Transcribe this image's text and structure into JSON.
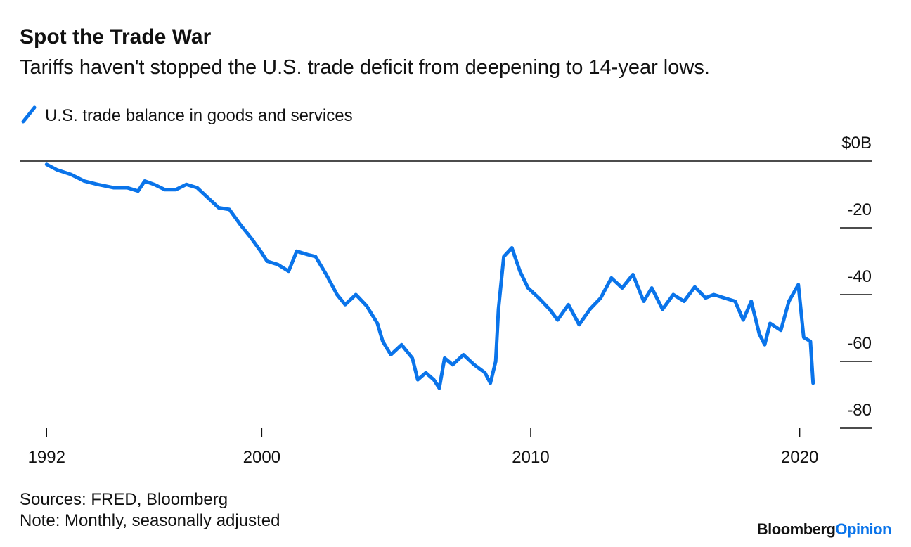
{
  "chart_data": {
    "type": "line",
    "title": "Spot the Trade War",
    "subtitle": "Tariffs haven't stopped the U.S. trade deficit from deepening to 14-year lows.",
    "source": "Sources: FRED, Bloomberg",
    "note": "Note: Monthly, seasonally adjusted",
    "logo": [
      "Bloomberg",
      "Opinion"
    ],
    "x": [
      1992.0,
      1992.4,
      1992.9,
      1993.4,
      1993.9,
      1994.5,
      1995.0,
      1995.4,
      1995.65,
      1996.0,
      1996.4,
      1996.8,
      1997.2,
      1997.6,
      1998.0,
      1998.4,
      1998.8,
      1999.2,
      1999.6,
      2000.0,
      2000.2,
      2000.6,
      2001.0,
      2001.3,
      2001.7,
      2002.0,
      2002.4,
      2002.8,
      2003.1,
      2003.5,
      2003.9,
      2004.3,
      2004.5,
      2004.8,
      2005.2,
      2005.6,
      2005.8,
      2006.1,
      2006.4,
      2006.6,
      2006.8,
      2007.1,
      2007.5,
      2007.9,
      2008.3,
      2008.5,
      2008.7,
      2008.8,
      2009.0,
      2009.3,
      2009.6,
      2009.9,
      2010.3,
      2010.7,
      2011.0,
      2011.4,
      2011.8,
      2012.2,
      2012.6,
      2013.0,
      2013.4,
      2013.8,
      2014.2,
      2014.5,
      2014.9,
      2015.3,
      2015.7,
      2016.1,
      2016.5,
      2016.8,
      2017.2,
      2017.6,
      2017.9,
      2018.2,
      2018.5,
      2018.7,
      2018.9,
      2019.3,
      2019.6,
      2019.95,
      2020.15,
      2020.4,
      2020.5
    ],
    "series": [
      {
        "name": "U.S. trade balance in goods and services",
        "color": "#0a74ea",
        "values": [
          -1,
          -2.7,
          -4,
          -6,
          -7,
          -8,
          -8,
          -9,
          -6,
          -7,
          -8.6,
          -8.6,
          -7,
          -8,
          -11,
          -14,
          -14.5,
          -19,
          -23,
          -27.5,
          -30,
          -31,
          -33,
          -27,
          -28,
          -28.6,
          -34,
          -40,
          -43,
          -40,
          -43.4,
          -48.6,
          -54,
          -58,
          -55,
          -59,
          -65.5,
          -63.4,
          -65.5,
          -68,
          -59,
          -61,
          -58,
          -61,
          -63.4,
          -66.5,
          -60,
          -44.4,
          -28.6,
          -26,
          -33,
          -38,
          -41,
          -44.4,
          -47.6,
          -43,
          -49,
          -44.4,
          -41,
          -35,
          -38,
          -34,
          -42,
          -38,
          -44.4,
          -40,
          -42,
          -37.7,
          -41,
          -40,
          -41,
          -42,
          -47.6,
          -42,
          -51.8,
          -55,
          -48.6,
          -50.7,
          -42,
          -37,
          -52.8,
          -54,
          -66.5
        ]
      }
    ],
    "xlim": [
      1991,
      2021.5
    ],
    "xticks": [
      1992,
      2000,
      2010,
      2020
    ],
    "ylim": [
      -80,
      0
    ],
    "yticks": [
      {
        "value": 0,
        "label": "$0B"
      },
      -20,
      -40,
      -60,
      -80
    ],
    "legend": "top-left"
  }
}
